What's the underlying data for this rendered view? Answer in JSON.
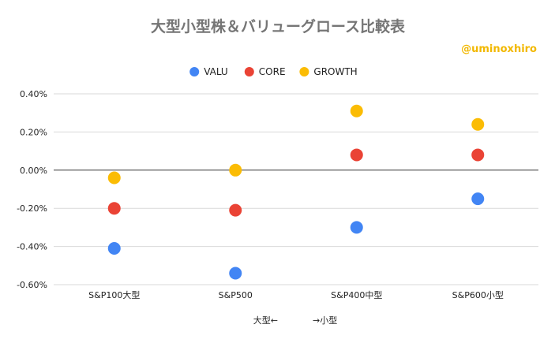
{
  "chart_data": {
    "type": "scatter",
    "title": "大型小型株＆バリューグロース比較表",
    "watermark": "@uminoxhiro",
    "xlabel": "大型←　　　　→小型",
    "ylabel": "",
    "categories": [
      "S&P100大型",
      "S&P500",
      "S&P400中型",
      "S&P600小型"
    ],
    "series": [
      {
        "name": "VALU",
        "color": "#4285f4",
        "values": [
          -0.41,
          -0.54,
          -0.3,
          -0.15
        ]
      },
      {
        "name": "CORE",
        "color": "#ea4335",
        "values": [
          -0.2,
          -0.21,
          0.08,
          0.08
        ]
      },
      {
        "name": "GROWTH",
        "color": "#fbbc04",
        "values": [
          -0.04,
          0.0,
          0.31,
          0.24
        ]
      }
    ],
    "ylim": [
      -0.6,
      0.4
    ],
    "yticks": [
      0.4,
      0.2,
      0.0,
      -0.2,
      -0.4,
      -0.6
    ],
    "ytick_labels": [
      "0.40%",
      "0.20%",
      "0.00%",
      "-0.20%",
      "-0.40%",
      "-0.60%"
    ],
    "grid": true,
    "legend_position": "top"
  }
}
